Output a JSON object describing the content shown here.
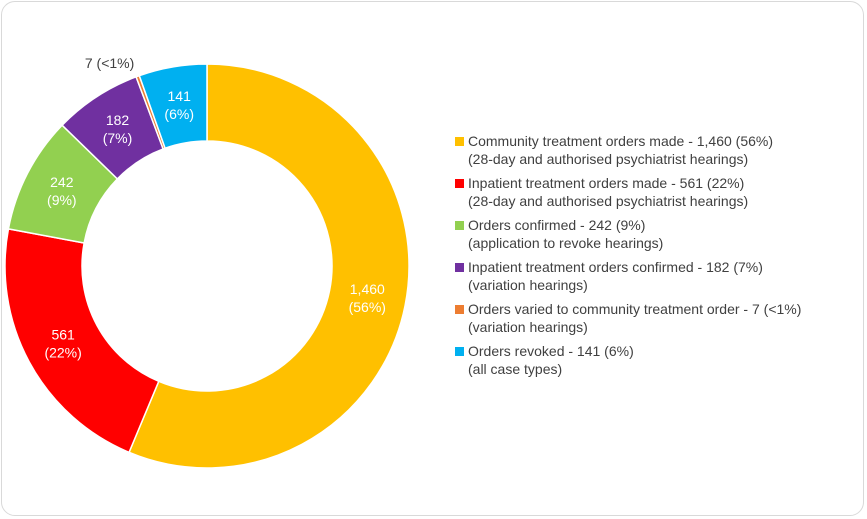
{
  "chart_data": {
    "type": "pie",
    "title": "",
    "categories": [
      "Community treatment orders made",
      "Inpatient treatment orders made",
      "Orders confirmed",
      "Inpatient treatment orders confirmed",
      "Orders varied to community treatment order",
      "Orders revoked"
    ],
    "values": [
      1460,
      561,
      242,
      182,
      7,
      141
    ],
    "colors": [
      "#FFC000",
      "#FF0000",
      "#92D050",
      "#7030A0",
      "#ED7D31",
      "#00B0F0"
    ],
    "data_labels": [
      [
        "1,460",
        "(56%)"
      ],
      [
        "561",
        "(22%)"
      ],
      [
        "242",
        "(9%)"
      ],
      [
        "182",
        "(7%)"
      ],
      [
        "7 (<1%)"
      ],
      [
        "141",
        "(6%)"
      ]
    ],
    "legend": [
      {
        "line1": "Community treatment orders made - 1,460 (56%)",
        "line2": "(28-day and authorised psychiatrist hearings)"
      },
      {
        "line1": "Inpatient treatment orders made - 561 (22%)",
        "line2": "(28-day and authorised psychiatrist hearings)"
      },
      {
        "line1": "Orders confirmed - 242 (9%)",
        "line2": "(application to revoke hearings)"
      },
      {
        "line1": "Inpatient treatment orders confirmed - 182 (7%)",
        "line2": "(variation hearings)"
      },
      {
        "line1": "Orders varied to community treatment order - 7 (<1%)",
        "line2": "(variation hearings)"
      },
      {
        "line1": "Orders revoked - 141 (6%)",
        "line2": "(all case types)"
      }
    ],
    "legend_position": "right",
    "label_color_inside": "#FFFFFF",
    "label_color_outside": "#404040"
  }
}
